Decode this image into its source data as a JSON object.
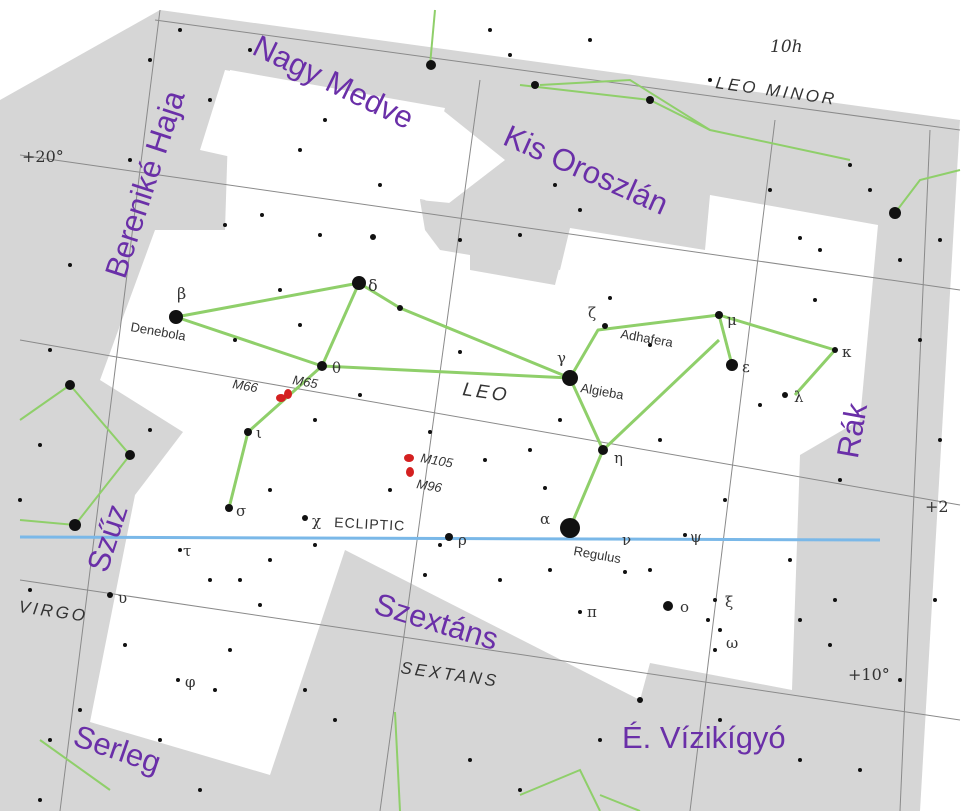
{
  "constellation": {
    "label": "LEO"
  },
  "neighbors_en": {
    "leo_minor": "LEO MINOR",
    "virgo": "VIRGO",
    "sextans": "SEXTANS",
    "ecliptic": "ECLIPTIC"
  },
  "hungarian_labels": {
    "ursa_major": "Nagy Medve",
    "leo_minor": "Kis Oroszlán",
    "coma": "Bereniké Haja",
    "cancer": "Rák",
    "virgo": "Szűz",
    "sextans": "Szextáns",
    "crater": "Serleg",
    "hydra": "É. Vízikígyó"
  },
  "stars": {
    "denebola": "Denebola",
    "beta": "β",
    "delta": "δ",
    "theta": "θ",
    "iota": "ι",
    "sigma": "σ",
    "chi": "χ",
    "tau": "τ",
    "upsilon": "υ",
    "phi": "φ",
    "rho": "ρ",
    "alpha": "α",
    "regulus": "Regulus",
    "nu": "ν",
    "psi": "ψ",
    "pi": "π",
    "xi": "ξ",
    "omicron": "o",
    "omega": "ω",
    "eta": "η",
    "gamma": "γ",
    "algieba": "Algieba",
    "zeta": "ζ",
    "adhafera": "Adhafera",
    "mu": "μ",
    "epsilon": "ε",
    "kappa": "κ",
    "lambda": "λ"
  },
  "deep_sky": {
    "m66": "M66",
    "m65": "M65",
    "m105": "M105",
    "m96": "M96"
  },
  "coordinates": {
    "ra_10h": "10h",
    "dec_plus20_left": "+20°",
    "dec_plus20_right": "+2",
    "dec_plus10": "+10°"
  },
  "colors": {
    "background": "#ffffff",
    "neighbor_region": "#d6d6d6",
    "constellation_region": "#ffffff",
    "grid_line": "#8a8a8a",
    "figure_line": "#8fcf6a",
    "ecliptic": "#7ab8e8",
    "star": "#111111",
    "deep_sky_object": "#d42020",
    "label_text": "#333333",
    "hungarian_text": "#6a2fa8"
  }
}
